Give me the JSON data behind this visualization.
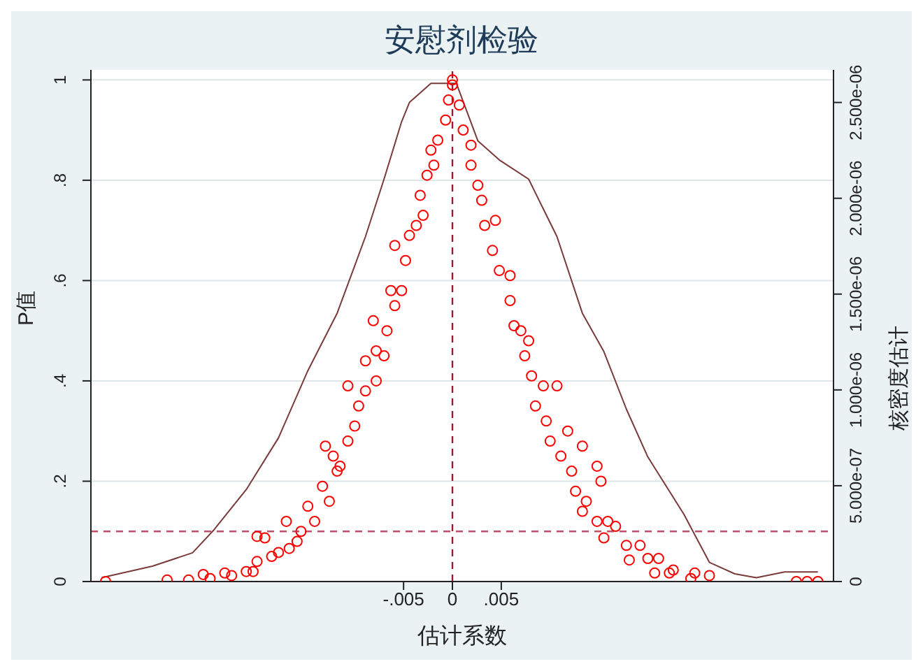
{
  "chart_data": {
    "type": "scatter",
    "title": "安慰剂检验",
    "xlabel": "估计系数",
    "ylabel": "P值",
    "y2label": "核密度估计",
    "xlim": [
      -0.037,
      0.039
    ],
    "xticks": [
      {
        "value": -0.005,
        "label": "-.005"
      },
      {
        "value": 0,
        "label": "0"
      },
      {
        "value": 0.005,
        "label": ".005"
      }
    ],
    "ylim": [
      0,
      1.02
    ],
    "yticks": [
      {
        "value": 0,
        "label": "0"
      },
      {
        "value": 0.2,
        "label": ".2"
      },
      {
        "value": 0.4,
        "label": ".4"
      },
      {
        "value": 0.6,
        "label": ".6"
      },
      {
        "value": 0.8,
        "label": ".8"
      },
      {
        "value": 1,
        "label": "1"
      }
    ],
    "y2lim": [
      0,
      2.67e-06
    ],
    "y2ticks": [
      {
        "value": 0,
        "label": "0"
      },
      {
        "value": 5e-07,
        "label": "5.000e-07"
      },
      {
        "value": 1e-06,
        "label": "1.000e-06"
      },
      {
        "value": 1.5e-06,
        "label": "1.500e-06"
      },
      {
        "value": 2e-06,
        "label": "2.000e-06"
      },
      {
        "value": 2.5e-06,
        "label": "2.500e-06"
      }
    ],
    "grid": "y",
    "ref_lines": [
      {
        "axis": "y",
        "value": 0.1,
        "color": "#c0506a",
        "line_style": "dashed"
      },
      {
        "axis": "x",
        "value": 0,
        "color": "#a01830",
        "line_style": "dashed"
      }
    ],
    "series": [
      {
        "color": "#ff0000",
        "marker": "circle",
        "x": [
          -0.0355,
          -0.0292,
          -0.027,
          -0.0255,
          -0.0248,
          -0.0233,
          -0.0226,
          -0.0211,
          -0.0204,
          -0.02,
          -0.0192,
          -0.02,
          -0.0185,
          -0.0178,
          -0.017,
          -0.0167,
          -0.0159,
          -0.0155,
          -0.0148,
          -0.0141,
          -0.0133,
          -0.013,
          -0.0126,
          -0.0122,
          -0.0118,
          -0.0115,
          -0.0107,
          -0.0107,
          -0.01,
          -0.0096,
          -0.0089,
          -0.0089,
          -0.0081,
          -0.0078,
          -0.0078,
          -0.007,
          -0.0067,
          -0.0063,
          -0.0059,
          -0.0059,
          -0.0052,
          -0.0048,
          -0.0044,
          -0.0037,
          -0.0033,
          -0.003,
          -0.0026,
          -0.0022,
          -0.0019,
          -0.0015,
          -0.0007,
          -0.0004,
          0,
          0,
          0.0007,
          0.0011,
          0.0019,
          0.0019,
          0.0026,
          0.003,
          0.0033,
          0.0044,
          0.0041,
          0.0048,
          0.0059,
          0.0059,
          0.0063,
          0.007,
          0.0078,
          0.0074,
          0.0081,
          0.0093,
          0.0107,
          0.0085,
          0.0096,
          0.0118,
          0.01,
          0.0111,
          0.0133,
          0.0122,
          0.0148,
          0.0126,
          0.0152,
          0.0137,
          0.0133,
          0.0148,
          0.0159,
          0.0167,
          0.0155,
          0.0178,
          0.0192,
          0.0181,
          0.02,
          0.0211,
          0.0207,
          0.0222,
          0.0226,
          0.0244,
          0.0248,
          0.0263,
          0.0352,
          0.0363,
          0.0374
        ],
        "values": [
          0,
          0.003,
          0.003,
          0.014,
          0.006,
          0.017,
          0.012,
          0.02,
          0.02,
          0.09,
          0.087,
          0.04,
          0.05,
          0.058,
          0.12,
          0.066,
          0.08,
          0.1,
          0.15,
          0.12,
          0.19,
          0.27,
          0.16,
          0.25,
          0.22,
          0.23,
          0.39,
          0.28,
          0.31,
          0.35,
          0.38,
          0.44,
          0.52,
          0.46,
          0.4,
          0.45,
          0.5,
          0.58,
          0.67,
          0.55,
          0.58,
          0.64,
          0.69,
          0.71,
          0.77,
          0.73,
          0.81,
          0.86,
          0.83,
          0.88,
          0.92,
          0.96,
          1,
          0.99,
          0.95,
          0.9,
          0.87,
          0.83,
          0.79,
          0.76,
          0.71,
          0.72,
          0.66,
          0.62,
          0.61,
          0.56,
          0.51,
          0.5,
          0.48,
          0.45,
          0.41,
          0.39,
          0.39,
          0.35,
          0.32,
          0.3,
          0.28,
          0.25,
          0.27,
          0.22,
          0.23,
          0.18,
          0.2,
          0.16,
          0.14,
          0.12,
          0.12,
          0.11,
          0.087,
          0.072,
          0.072,
          0.043,
          0.046,
          0.046,
          0.017,
          0.017,
          0.023,
          0.006,
          0.017,
          0.012,
          0,
          0,
          0
        ]
      },
      {
        "type": "line",
        "axis": "y2",
        "color": "#7b3a3a",
        "x": [
          -0.0359,
          -0.0307,
          -0.0266,
          -0.0244,
          -0.0211,
          -0.0178,
          -0.0148,
          -0.0118,
          -0.0089,
          -0.007,
          -0.0052,
          -0.0044,
          -0.0022,
          -0.0004,
          0.0004,
          0.0026,
          0.0048,
          0.0078,
          0.0107,
          0.0133,
          0.0155,
          0.0178,
          0.02,
          0.0237,
          0.0263,
          0.0289,
          0.0311,
          0.034,
          0.0374
        ],
        "values": [
          2e-08,
          8e-08,
          1.5e-07,
          2.7e-07,
          4.8e-07,
          7.5e-07,
          1.1e-06,
          1.4e-06,
          1.8e-06,
          2.1e-06,
          2.4e-06,
          2.5e-06,
          2.6e-06,
          2.6e-06,
          2.6e-06,
          2.3e-06,
          2.2e-06,
          2.1e-06,
          1.8e-06,
          1.4e-06,
          1.2e-06,
          9e-07,
          6.5e-07,
          3.5e-07,
          1e-07,
          4e-08,
          2e-08,
          5e-08,
          5e-08
        ]
      }
    ]
  }
}
